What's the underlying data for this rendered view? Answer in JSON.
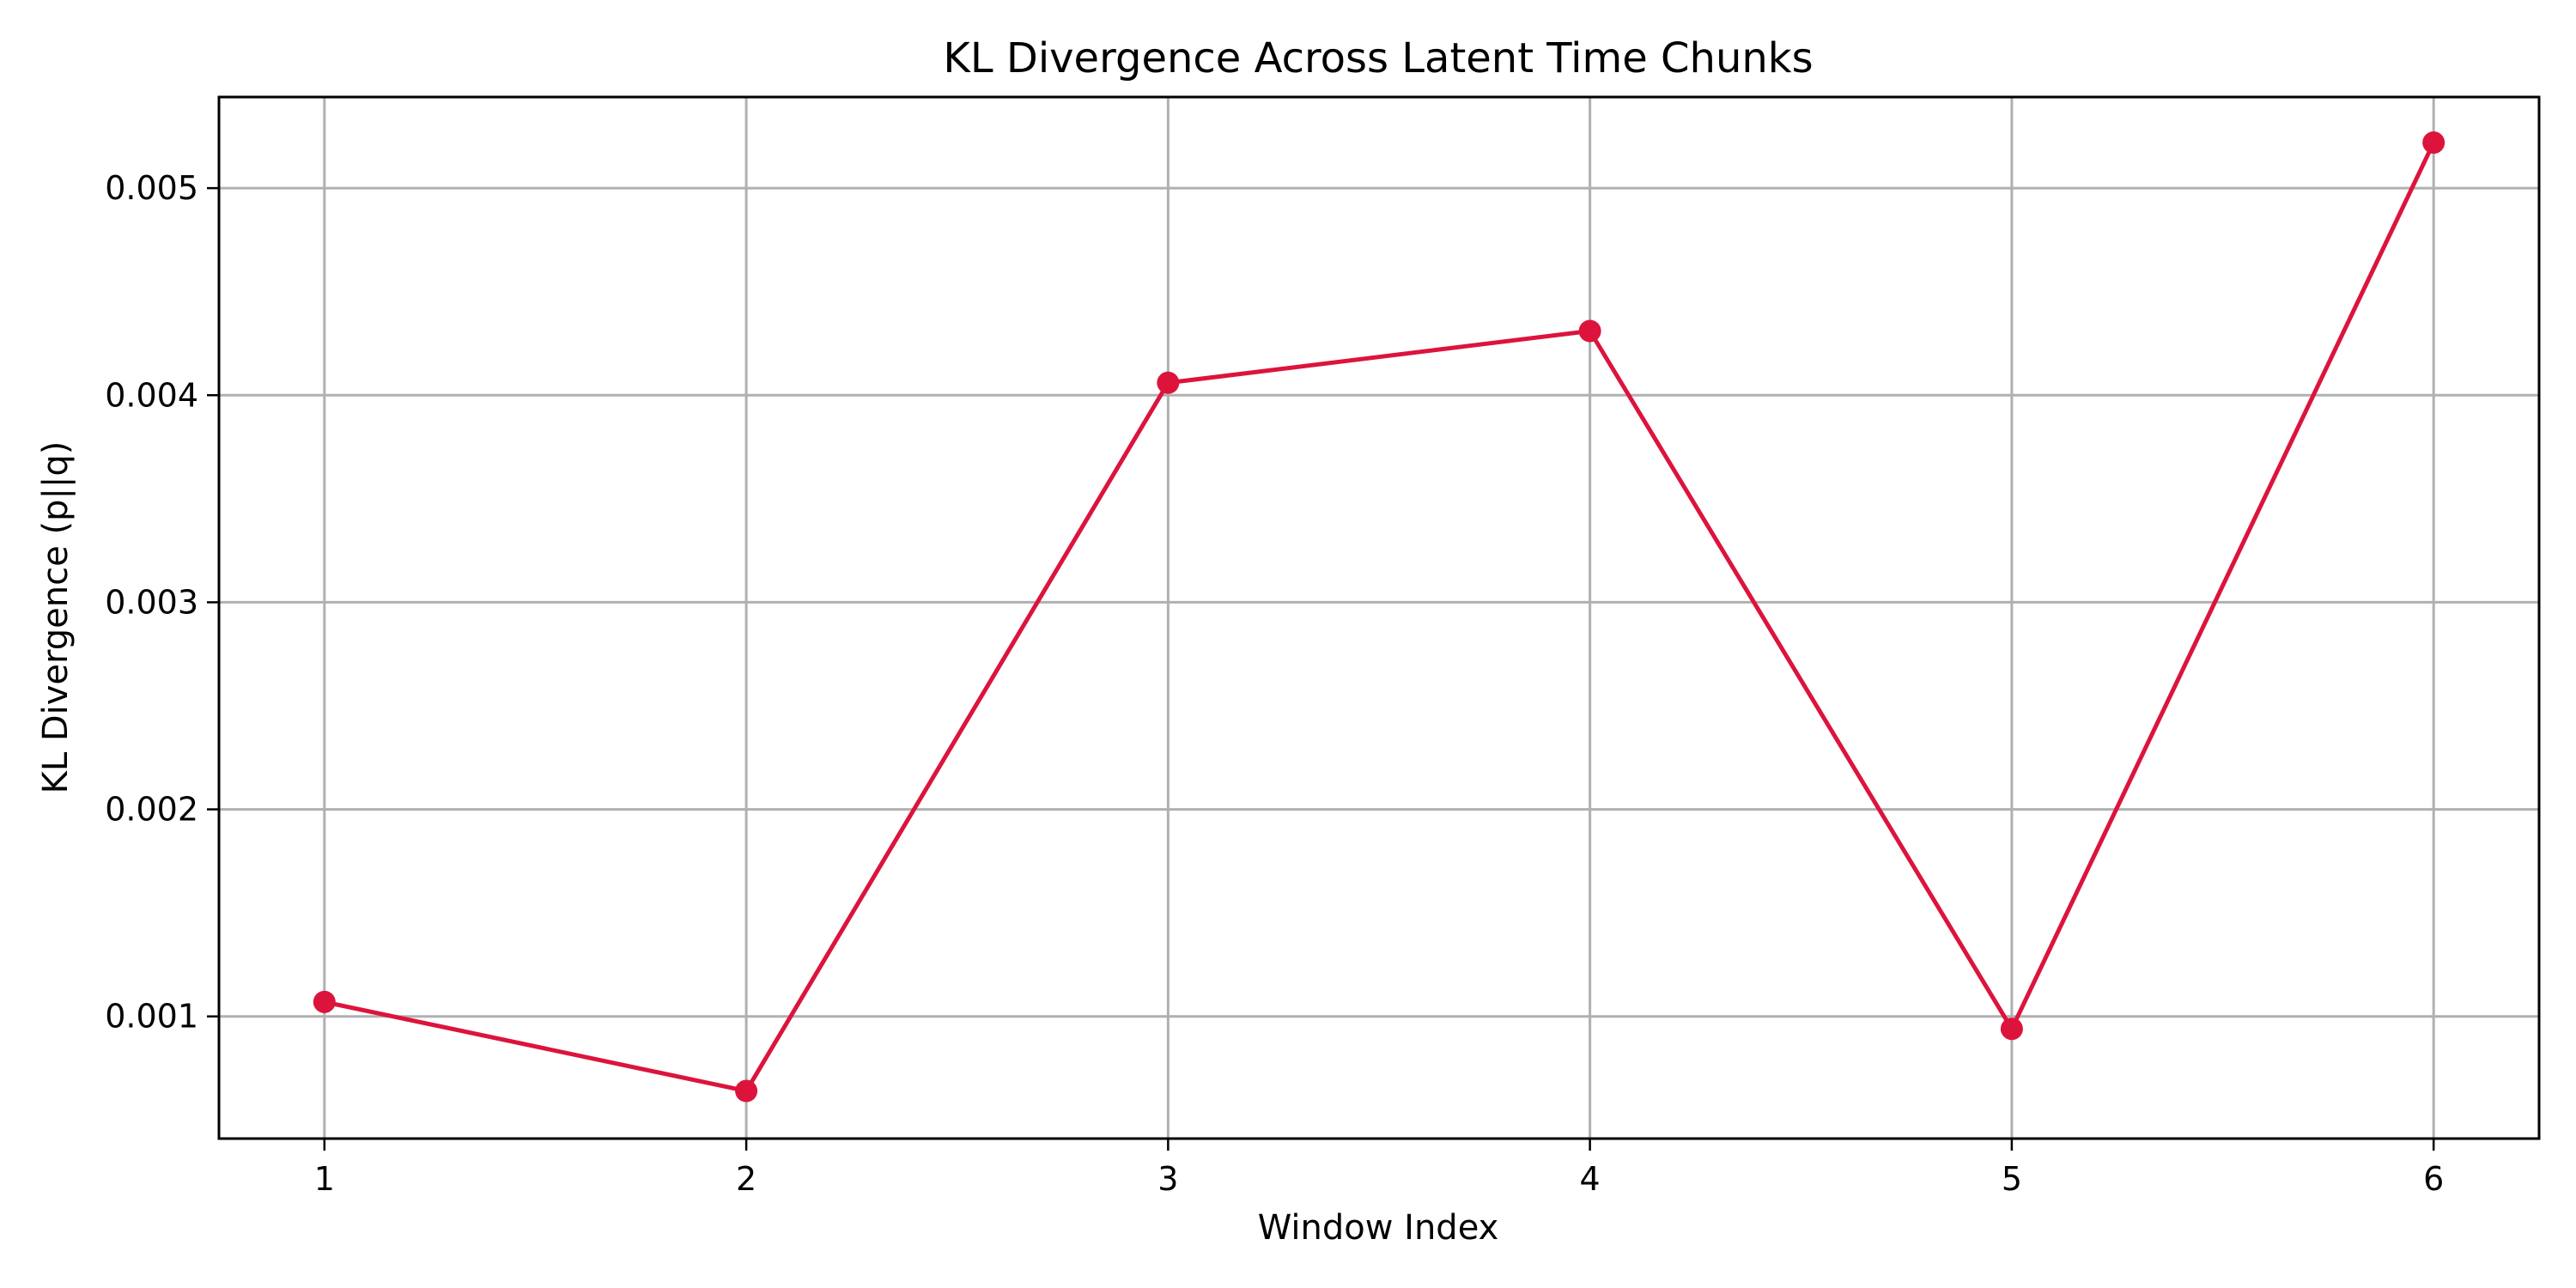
{
  "chart_data": {
    "type": "line",
    "title": "KL Divergence Across Latent Time Chunks",
    "xlabel": "Window Index",
    "ylabel": "KL Divergence (p||q)",
    "x": [
      1,
      2,
      3,
      4,
      5,
      6
    ],
    "xticks": [
      "1",
      "2",
      "3",
      "4",
      "5",
      "6"
    ],
    "yticks": [
      0.001,
      0.002,
      0.003,
      0.004,
      0.005
    ],
    "ytick_labels": [
      "0.001",
      "0.002",
      "0.003",
      "0.004",
      "0.005"
    ],
    "xlim": [
      0.75,
      6.25
    ],
    "ylim": [
      0.00041,
      0.00544
    ],
    "grid": true,
    "series": [
      {
        "color": "#dc143c",
        "marker": "circle",
        "values": [
          0.00107,
          0.00064,
          0.00406,
          0.00431,
          0.00094,
          0.00522
        ]
      }
    ]
  }
}
